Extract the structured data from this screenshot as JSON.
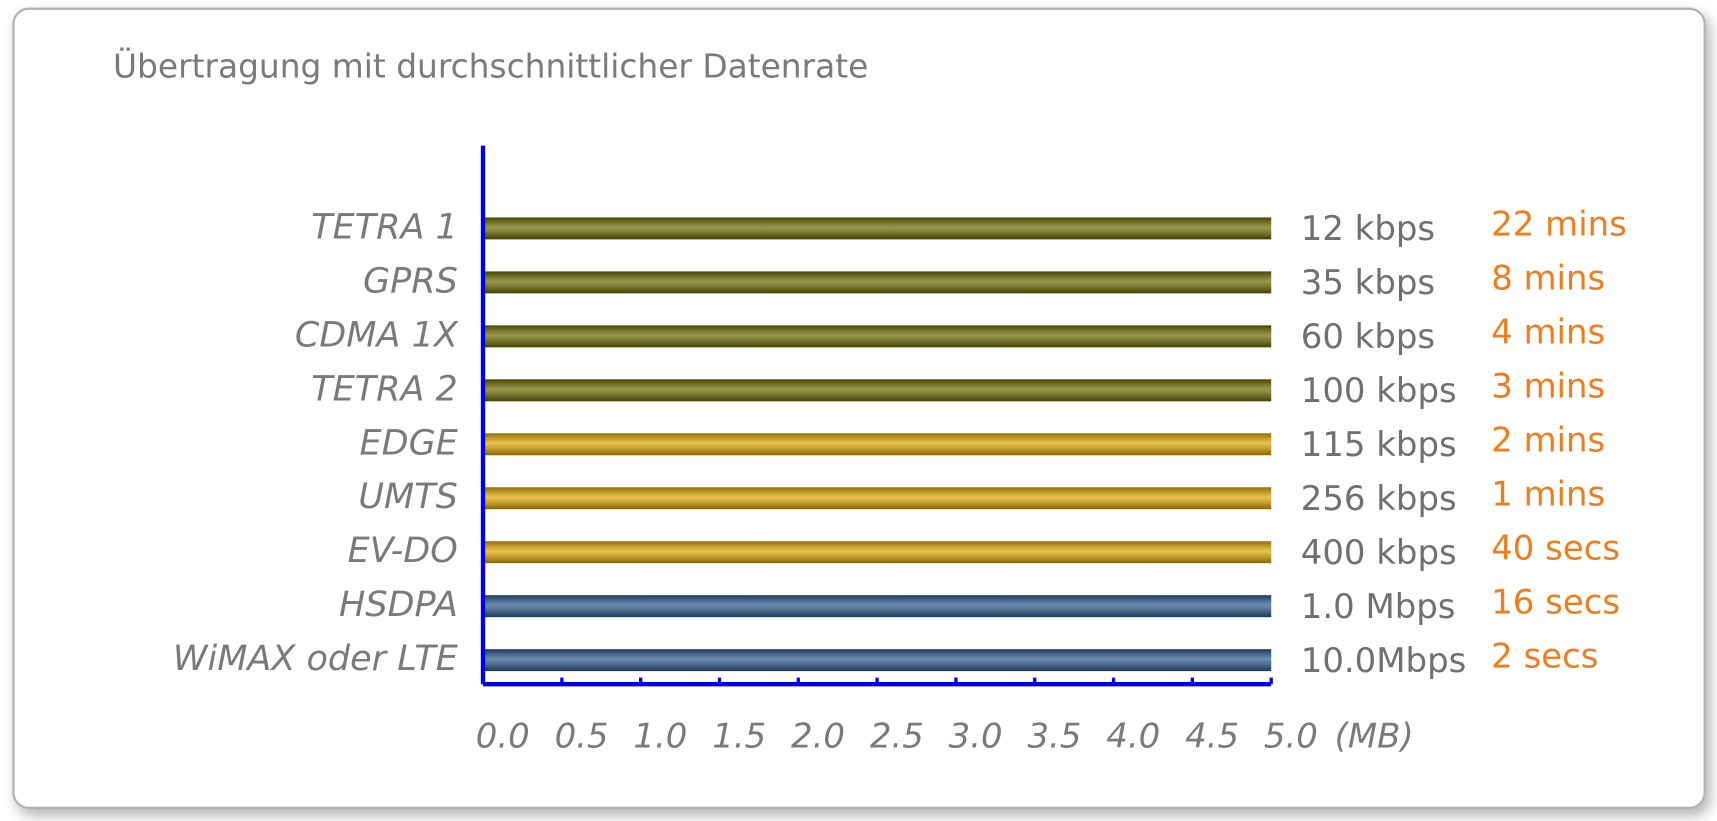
{
  "chart_data": {
    "type": "bar",
    "orientation": "horizontal",
    "title": "Übertragung mit durchschnittlicher Datenrate",
    "x_label": "(MB)",
    "categories": [
      "TETRA 1",
      "GPRS",
      "CDMA 1X",
      "TETRA 2",
      "EDGE",
      "UMTS",
      "EV-DO",
      "HSDPA",
      "WiMAX oder LTE"
    ],
    "values": [
      5.0,
      5.0,
      5.0,
      5.0,
      5.0,
      5.0,
      5.0,
      5.0,
      5.0
    ],
    "colors": [
      "#6b6b00",
      "#6b6b00",
      "#6b6b00",
      "#6b6b00",
      "#e0a800",
      "#e0a800",
      "#e0a800",
      "#2a5a8c",
      "#2a5a8c"
    ],
    "rates": [
      "12 kbps",
      "35 kbps",
      "60 kbps",
      "100 kbps",
      "115 kbps",
      "256 kbps",
      "400 kbps",
      "1.0 Mbps",
      "10.0Mbps"
    ],
    "times": [
      "22 mins",
      "8 mins",
      "4 mins",
      "3 mins",
      "2 mins",
      "1 mins",
      "40 secs",
      "16 secs",
      "2 secs"
    ],
    "xlim": [
      0,
      5
    ],
    "xticks": [
      {
        "value": 0,
        "label": "0.0"
      },
      {
        "value": 0.5,
        "label": "0.5"
      },
      {
        "value": 1,
        "label": "1.0"
      },
      {
        "value": 1.5,
        "label": "1.5"
      },
      {
        "value": 2,
        "label": "2.0"
      },
      {
        "value": 2.5,
        "label": "2.5"
      },
      {
        "value": 3,
        "label": "3.0"
      },
      {
        "value": 3.5,
        "label": "3.5"
      },
      {
        "value": 4,
        "label": "4.0"
      },
      {
        "value": 4.5,
        "label": "4.5"
      },
      {
        "value": 5,
        "label": "5.0"
      }
    ],
    "axis_color": "#0000ee"
  }
}
